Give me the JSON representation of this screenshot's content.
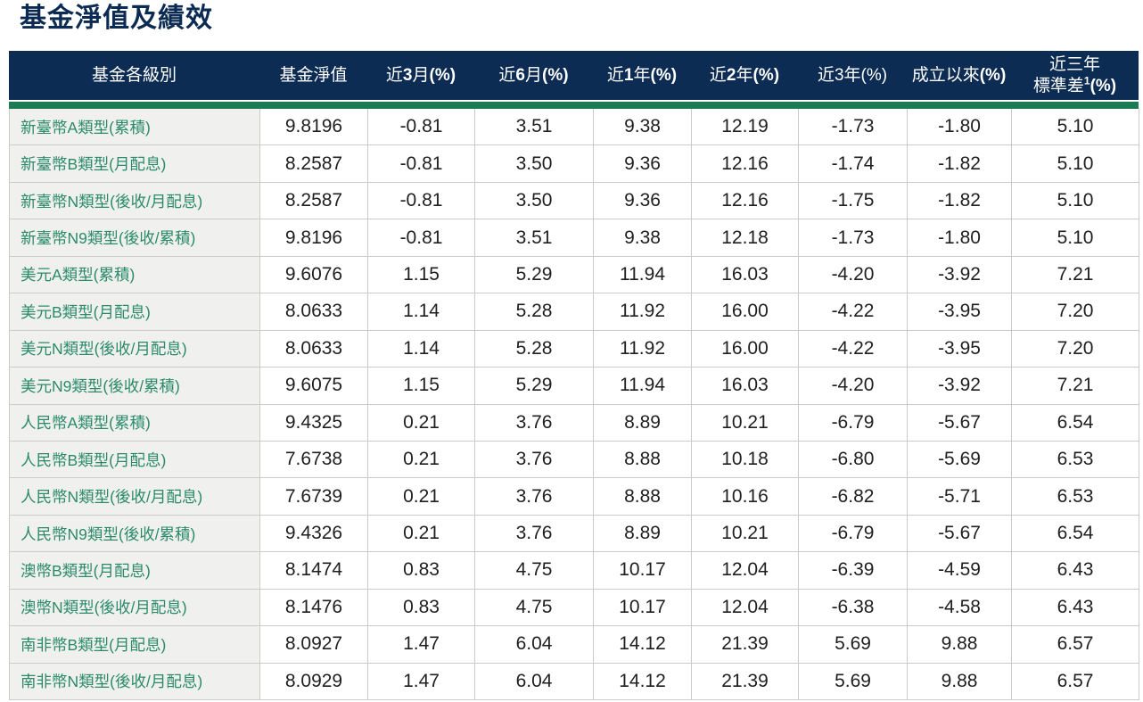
{
  "page_title": "基金淨值及績效",
  "colors": {
    "title": "#0c2b52",
    "header_bg": "#0d2c54",
    "header_text": "#ffffff",
    "accent_green_bar": "#1c7a55",
    "label_text_green": "#2b8a6c",
    "first_column_bg": "#f0f1ee",
    "grid_border": "#c9ccc9",
    "value_text": "#1f1f1f"
  },
  "table": {
    "columns": [
      {
        "id": "fund-class",
        "label": "基金各級別",
        "segments": [
          {
            "t": "基金各級別"
          }
        ]
      },
      {
        "id": "nav",
        "label": "基金淨值",
        "segments": [
          {
            "t": "基金淨值"
          }
        ]
      },
      {
        "id": "3m",
        "label": "近3月(%)",
        "segments": [
          {
            "t": "近"
          },
          {
            "t": "3",
            "b": true
          },
          {
            "t": "月"
          },
          {
            "t": "(%)",
            "b": true
          }
        ]
      },
      {
        "id": "6m",
        "label": "近6月(%)",
        "segments": [
          {
            "t": "近"
          },
          {
            "t": "6",
            "b": true
          },
          {
            "t": "月"
          },
          {
            "t": "(%)",
            "b": true
          }
        ]
      },
      {
        "id": "1y",
        "label": "近1年(%)",
        "segments": [
          {
            "t": "近"
          },
          {
            "t": "1",
            "b": true
          },
          {
            "t": "年"
          },
          {
            "t": "(%)",
            "b": true
          }
        ]
      },
      {
        "id": "2y",
        "label": "近2年(%)",
        "segments": [
          {
            "t": "近"
          },
          {
            "t": "2",
            "b": true
          },
          {
            "t": "年"
          },
          {
            "t": "(%)",
            "b": true
          }
        ]
      },
      {
        "id": "3y",
        "label": "近3年(%)",
        "segments": [
          {
            "t": "近3年(%)"
          }
        ]
      },
      {
        "id": "since-inception",
        "label": "成立以來(%)",
        "segments": [
          {
            "t": "成立以來"
          },
          {
            "t": "(%)",
            "b": true
          }
        ]
      },
      {
        "id": "stddev-3y",
        "label": "近三年標準差1(%)",
        "segments": [
          {
            "t": "近三年"
          },
          {
            "t": "標準差",
            "br": true
          },
          {
            "t": "1",
            "sup": true,
            "b": true
          },
          {
            "t": "(%)",
            "b": true
          }
        ]
      }
    ],
    "rows": [
      {
        "label": "新臺幣A類型(累積)",
        "values": [
          "9.8196",
          "-0.81",
          "3.51",
          "9.38",
          "12.19",
          "-1.73",
          "-1.80",
          "5.10"
        ]
      },
      {
        "label": "新臺幣B類型(月配息)",
        "values": [
          "8.2587",
          "-0.81",
          "3.50",
          "9.36",
          "12.16",
          "-1.74",
          "-1.82",
          "5.10"
        ]
      },
      {
        "label": "新臺幣N類型(後收/月配息)",
        "values": [
          "8.2587",
          "-0.81",
          "3.50",
          "9.36",
          "12.16",
          "-1.75",
          "-1.82",
          "5.10"
        ]
      },
      {
        "label": "新臺幣N9類型(後收/累積)",
        "values": [
          "9.8196",
          "-0.81",
          "3.51",
          "9.38",
          "12.18",
          "-1.73",
          "-1.80",
          "5.10"
        ]
      },
      {
        "label": "美元A類型(累積)",
        "values": [
          "9.6076",
          "1.15",
          "5.29",
          "11.94",
          "16.03",
          "-4.20",
          "-3.92",
          "7.21"
        ]
      },
      {
        "label": "美元B類型(月配息)",
        "values": [
          "8.0633",
          "1.14",
          "5.28",
          "11.92",
          "16.00",
          "-4.22",
          "-3.95",
          "7.20"
        ]
      },
      {
        "label": "美元N類型(後收/月配息)",
        "values": [
          "8.0633",
          "1.14",
          "5.28",
          "11.92",
          "16.00",
          "-4.22",
          "-3.95",
          "7.20"
        ]
      },
      {
        "label": "美元N9類型(後收/累積)",
        "values": [
          "9.6075",
          "1.15",
          "5.29",
          "11.94",
          "16.03",
          "-4.20",
          "-3.92",
          "7.21"
        ]
      },
      {
        "label": "人民幣A類型(累積)",
        "values": [
          "9.4325",
          "0.21",
          "3.76",
          "8.89",
          "10.21",
          "-6.79",
          "-5.67",
          "6.54"
        ]
      },
      {
        "label": "人民幣B類型(月配息)",
        "values": [
          "7.6738",
          "0.21",
          "3.76",
          "8.88",
          "10.18",
          "-6.80",
          "-5.69",
          "6.53"
        ]
      },
      {
        "label": "人民幣N類型(後收/月配息)",
        "values": [
          "7.6739",
          "0.21",
          "3.76",
          "8.88",
          "10.16",
          "-6.82",
          "-5.71",
          "6.53"
        ]
      },
      {
        "label": "人民幣N9類型(後收/累積)",
        "values": [
          "9.4326",
          "0.21",
          "3.76",
          "8.89",
          "10.21",
          "-6.79",
          "-5.67",
          "6.54"
        ]
      },
      {
        "label": "澳幣B類型(月配息)",
        "values": [
          "8.1474",
          "0.83",
          "4.75",
          "10.17",
          "12.04",
          "-6.39",
          "-4.59",
          "6.43"
        ]
      },
      {
        "label": "澳幣N類型(後收/月配息)",
        "values": [
          "8.1476",
          "0.83",
          "4.75",
          "10.17",
          "12.04",
          "-6.38",
          "-4.58",
          "6.43"
        ]
      },
      {
        "label": "南非幣B類型(月配息)",
        "values": [
          "8.0927",
          "1.47",
          "6.04",
          "14.12",
          "21.39",
          "5.69",
          "9.88",
          "6.57"
        ]
      },
      {
        "label": "南非幣N類型(後收/月配息)",
        "values": [
          "8.0929",
          "1.47",
          "6.04",
          "14.12",
          "21.39",
          "5.69",
          "9.88",
          "6.57"
        ]
      }
    ]
  }
}
